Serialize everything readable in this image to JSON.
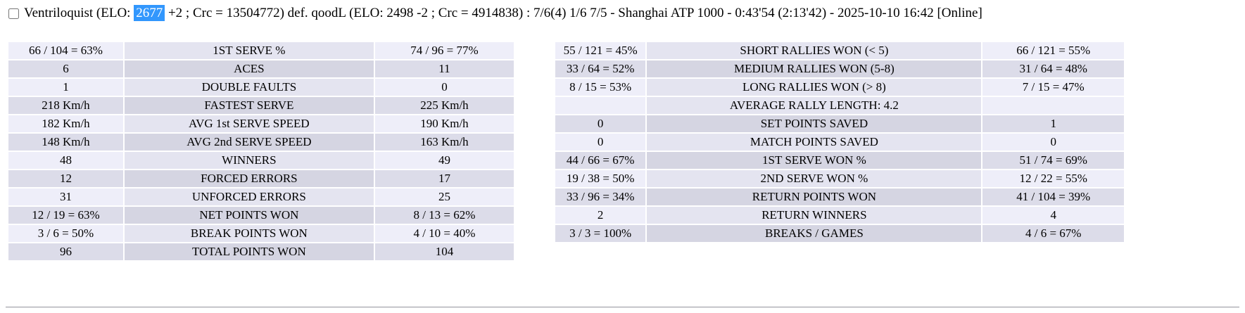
{
  "header": {
    "checkbox_checked": false,
    "pre_selection": "Ventriloquist (ELO: ",
    "selected": "2677",
    "post_selection": " +2 ; Crc = 13504772) def. qoodL (ELO: 2498 -2 ; Crc = 4914838) : 7/6(4) 1/6 7/5 - Shanghai ATP 1000 - 0:43'54 (2:13'42) - 2025-10-10 16:42 [Online]"
  },
  "colors": {
    "selection_bg": "#3297fd",
    "selection_fg": "#ffffff",
    "value_light": "#eeeef9",
    "value_dark": "#dcdce9",
    "label_light": "#e4e4f0",
    "label_dark": "#d5d5e2"
  },
  "serve_stats_table": {
    "rows": [
      {
        "p1": "66 / 104 = 63%",
        "label": "1ST SERVE %",
        "p2": "74 / 96 = 77%",
        "shade": "light"
      },
      {
        "p1": "6",
        "label": "ACES",
        "p2": "11",
        "shade": "dark"
      },
      {
        "p1": "1",
        "label": "DOUBLE FAULTS",
        "p2": "0",
        "shade": "light"
      },
      {
        "p1": "218 Km/h",
        "label": "FASTEST SERVE",
        "p2": "225 Km/h",
        "shade": "dark"
      },
      {
        "p1": "182 Km/h",
        "label": "AVG 1st SERVE SPEED",
        "p2": "190 Km/h",
        "shade": "light"
      },
      {
        "p1": "148 Km/h",
        "label": "AVG 2nd SERVE SPEED",
        "p2": "163 Km/h",
        "shade": "dark"
      },
      {
        "p1": "48",
        "label": "WINNERS",
        "p2": "49",
        "shade": "light"
      },
      {
        "p1": "12",
        "label": "FORCED ERRORS",
        "p2": "17",
        "shade": "dark"
      },
      {
        "p1": "31",
        "label": "UNFORCED ERRORS",
        "p2": "25",
        "shade": "light"
      },
      {
        "p1": "12 / 19 = 63%",
        "label": "NET POINTS WON",
        "p2": "8 / 13 = 62%",
        "shade": "dark"
      },
      {
        "p1": "3 / 6 = 50%",
        "label": "BREAK POINTS WON",
        "p2": "4 / 10 = 40%",
        "shade": "light"
      },
      {
        "p1": "96",
        "label": "TOTAL POINTS WON",
        "p2": "104",
        "shade": "dark"
      }
    ]
  },
  "rally_stats_table": {
    "rows": [
      {
        "p1": "55 / 121 = 45%",
        "label": "SHORT RALLIES WON (< 5)",
        "p2": "66 / 121 = 55%",
        "shade": "light"
      },
      {
        "p1": "33 / 64 = 52%",
        "label": "MEDIUM RALLIES WON (5-8)",
        "p2": "31 / 64 = 48%",
        "shade": "dark"
      },
      {
        "p1": "8 / 15 = 53%",
        "label": "LONG RALLIES WON (> 8)",
        "p2": "7 / 15 = 47%",
        "shade": "light"
      },
      {
        "p1": "",
        "label": "AVERAGE RALLY LENGTH: 4.2",
        "p2": "",
        "shade": "light"
      },
      {
        "p1": "0",
        "label": "SET POINTS SAVED",
        "p2": "1",
        "shade": "dark"
      },
      {
        "p1": "0",
        "label": "MATCH POINTS SAVED",
        "p2": "0",
        "shade": "light"
      },
      {
        "p1": "44 / 66 = 67%",
        "label": "1ST SERVE WON %",
        "p2": "51 / 74 = 69%",
        "shade": "dark"
      },
      {
        "p1": "19 / 38 = 50%",
        "label": "2ND SERVE WON %",
        "p2": "12 / 22 = 55%",
        "shade": "light"
      },
      {
        "p1": "33 / 96 = 34%",
        "label": "RETURN POINTS WON",
        "p2": "41 / 104 = 39%",
        "shade": "dark"
      },
      {
        "p1": "2",
        "label": "RETURN WINNERS",
        "p2": "4",
        "shade": "light"
      },
      {
        "p1": "3 / 3 = 100%",
        "label": "BREAKS / GAMES",
        "p2": "4 / 6 = 67%",
        "shade": "dark"
      }
    ]
  }
}
